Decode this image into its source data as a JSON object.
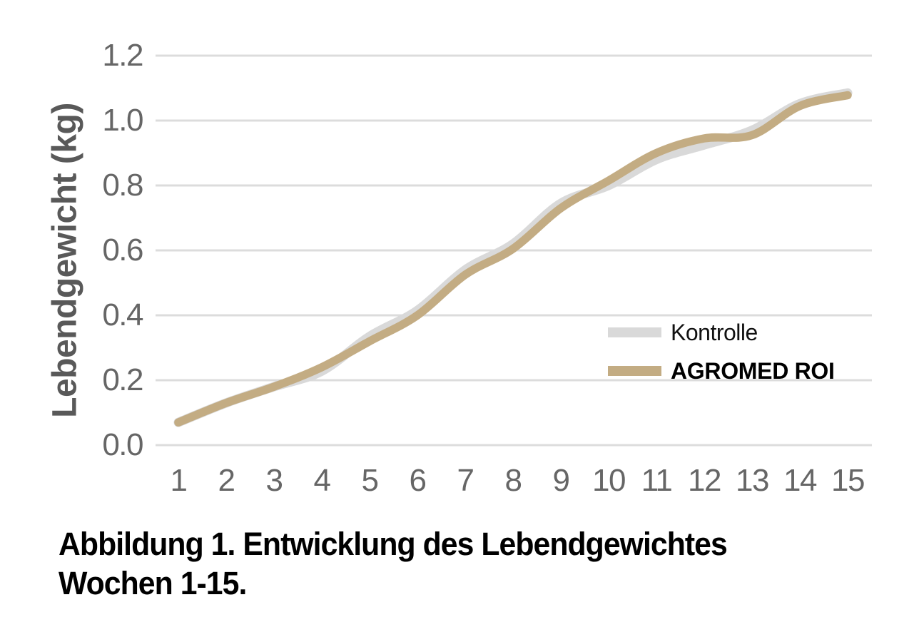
{
  "chart_data": {
    "type": "line",
    "line_style": "smooth",
    "categories": [
      1,
      2,
      3,
      4,
      5,
      6,
      7,
      8,
      9,
      10,
      11,
      12,
      13,
      14,
      15
    ],
    "series": [
      {
        "name": "Kontrolle",
        "color": "#d9d9d9",
        "values": [
          0.07,
          0.13,
          0.18,
          0.228,
          0.335,
          0.415,
          0.54,
          0.62,
          0.745,
          0.8,
          0.88,
          0.925,
          0.97,
          1.052,
          1.085
        ]
      },
      {
        "name": "AGROMED ROI",
        "color": "#c3ac83",
        "values": [
          0.07,
          0.13,
          0.18,
          0.24,
          0.32,
          0.4,
          0.525,
          0.605,
          0.73,
          0.815,
          0.9,
          0.945,
          0.955,
          1.045,
          1.078
        ]
      }
    ],
    "xlabel": "",
    "ylabel": "Lebendgewicht (kg)",
    "ylim": [
      0.0,
      1.2
    ],
    "ytick_labels": [
      "0.0",
      "0.2",
      "0.4",
      "0.6",
      "0.8",
      "1.0",
      "1.2"
    ],
    "grid": "horizontal",
    "legend_position": "inside-right-middle"
  },
  "caption": {
    "line1": "Abbildung 1. Entwicklung des Lebendgewichtes",
    "line2": "Wochen 1-15."
  },
  "colors": {
    "background": "#ffffff",
    "gridline": "#dcdcdc",
    "tick_text": "#666666",
    "axis_title_text": "#595959",
    "caption_text": "#000000",
    "kontrolle_line": "#d9d9d9",
    "agromed_line": "#c3ac83"
  }
}
